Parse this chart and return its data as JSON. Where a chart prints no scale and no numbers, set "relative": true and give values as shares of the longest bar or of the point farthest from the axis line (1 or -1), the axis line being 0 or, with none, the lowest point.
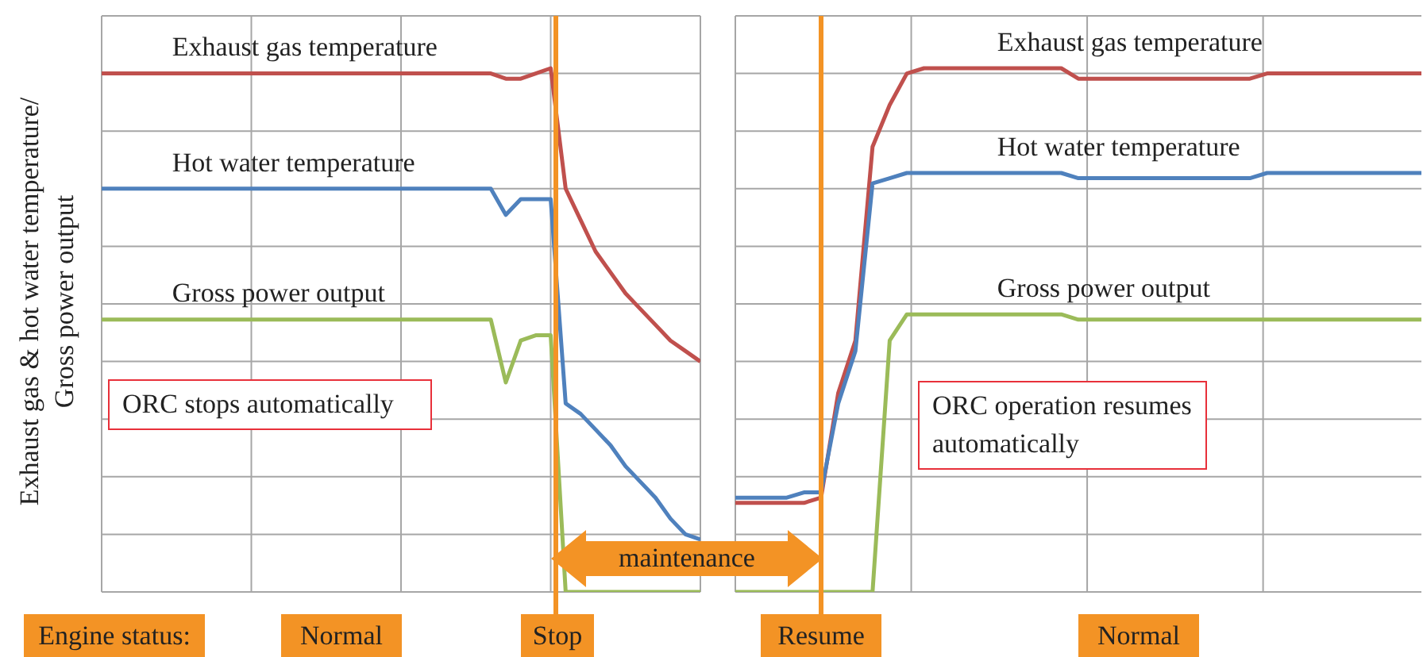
{
  "chart_data": [
    {
      "type": "line",
      "relative": true,
      "ylabel": "Exhaust gas & hot water temperature/Gross power output",
      "grid": true,
      "marker": "none",
      "line_style": "solid",
      "categories": [
        null,
        null,
        null,
        null,
        null,
        null,
        null,
        null,
        null,
        null,
        null,
        null,
        null,
        null,
        null,
        null,
        null,
        null,
        null,
        null,
        null,
        null,
        null,
        null,
        null,
        null,
        null,
        null,
        null,
        null,
        null,
        null,
        null,
        null,
        null,
        null,
        null,
        null,
        null,
        null,
        null
      ],
      "series": [
        {
          "name": "Exhaust gas temperature",
          "color": "#c0504d",
          "values": [
            0.99,
            0.99,
            0.99,
            0.99,
            0.99,
            0.99,
            0.99,
            0.99,
            0.99,
            0.99,
            0.99,
            0.99,
            0.99,
            0.99,
            0.99,
            0.99,
            0.99,
            0.99,
            0.99,
            0.99,
            0.99,
            0.99,
            0.99,
            0.99,
            0.99,
            0.99,
            0.99,
            0.98,
            0.98,
            0.99,
            1.0,
            0.77,
            0.71,
            0.65,
            0.61,
            0.57,
            0.54,
            0.51,
            0.48,
            0.46,
            0.44
          ]
        },
        {
          "name": "Hot water temperature",
          "color": "#4f81bd",
          "values": [
            0.77,
            0.77,
            0.77,
            0.77,
            0.77,
            0.77,
            0.77,
            0.77,
            0.77,
            0.77,
            0.77,
            0.77,
            0.77,
            0.77,
            0.77,
            0.77,
            0.77,
            0.77,
            0.77,
            0.77,
            0.77,
            0.77,
            0.77,
            0.77,
            0.77,
            0.77,
            0.77,
            0.72,
            0.75,
            0.75,
            0.75,
            0.36,
            0.34,
            0.31,
            0.28,
            0.24,
            0.21,
            0.18,
            0.14,
            0.11,
            0.1
          ]
        },
        {
          "name": "Gross power output",
          "color": "#9bbb59",
          "values": [
            0.52,
            0.52,
            0.52,
            0.52,
            0.52,
            0.52,
            0.52,
            0.52,
            0.52,
            0.52,
            0.52,
            0.52,
            0.52,
            0.52,
            0.52,
            0.52,
            0.52,
            0.52,
            0.52,
            0.52,
            0.52,
            0.52,
            0.52,
            0.52,
            0.52,
            0.52,
            0.52,
            0.4,
            0.48,
            0.49,
            0.49,
            0,
            0,
            0,
            0,
            0,
            0,
            0,
            0,
            0,
            0
          ]
        }
      ],
      "annotations": [
        "ORC stops automatically",
        "Engine status:",
        "Normal",
        "Stop",
        "maintenance"
      ]
    },
    {
      "type": "line",
      "relative": true,
      "grid": true,
      "marker": "none",
      "line_style": "solid",
      "categories": [
        null,
        null,
        null,
        null,
        null,
        null,
        null,
        null,
        null,
        null,
        null,
        null,
        null,
        null,
        null,
        null,
        null,
        null,
        null,
        null,
        null,
        null,
        null,
        null,
        null,
        null,
        null,
        null,
        null,
        null,
        null,
        null,
        null,
        null,
        null,
        null,
        null,
        null,
        null,
        null,
        null
      ],
      "series": [
        {
          "name": "Exhaust gas temperature",
          "color": "#c0504d",
          "values": [
            0.17,
            0.17,
            0.17,
            0.17,
            0.17,
            0.18,
            0.38,
            0.48,
            0.85,
            0.93,
            0.99,
            1.0,
            1.0,
            1.0,
            1.0,
            1.0,
            1.0,
            1.0,
            1.0,
            1.0,
            0.98,
            0.98,
            0.98,
            0.98,
            0.98,
            0.98,
            0.98,
            0.98,
            0.98,
            0.98,
            0.98,
            0.99,
            0.99,
            0.99,
            0.99,
            0.99,
            0.99,
            0.99,
            0.99,
            0.99,
            0.99
          ]
        },
        {
          "name": "Hot water temperature",
          "color": "#4f81bd",
          "values": [
            0.18,
            0.18,
            0.18,
            0.18,
            0.19,
            0.19,
            0.36,
            0.46,
            0.78,
            0.79,
            0.8,
            0.8,
            0.8,
            0.8,
            0.8,
            0.8,
            0.8,
            0.8,
            0.8,
            0.8,
            0.79,
            0.79,
            0.79,
            0.79,
            0.79,
            0.79,
            0.79,
            0.79,
            0.79,
            0.79,
            0.79,
            0.8,
            0.8,
            0.8,
            0.8,
            0.8,
            0.8,
            0.8,
            0.8,
            0.8,
            0.8
          ]
        },
        {
          "name": "Gross power output",
          "color": "#9bbb59",
          "values": [
            0,
            0,
            0,
            0,
            0,
            0,
            0,
            0,
            0,
            0.48,
            0.53,
            0.53,
            0.53,
            0.53,
            0.53,
            0.53,
            0.53,
            0.53,
            0.53,
            0.53,
            0.52,
            0.52,
            0.52,
            0.52,
            0.52,
            0.52,
            0.52,
            0.52,
            0.52,
            0.52,
            0.52,
            0.52,
            0.52,
            0.52,
            0.52,
            0.52,
            0.52,
            0.52,
            0.52,
            0.52,
            0.52
          ]
        }
      ],
      "annotations": [
        "ORC operation resumes automatically",
        "Resume",
        "Normal"
      ]
    }
  ]
}
